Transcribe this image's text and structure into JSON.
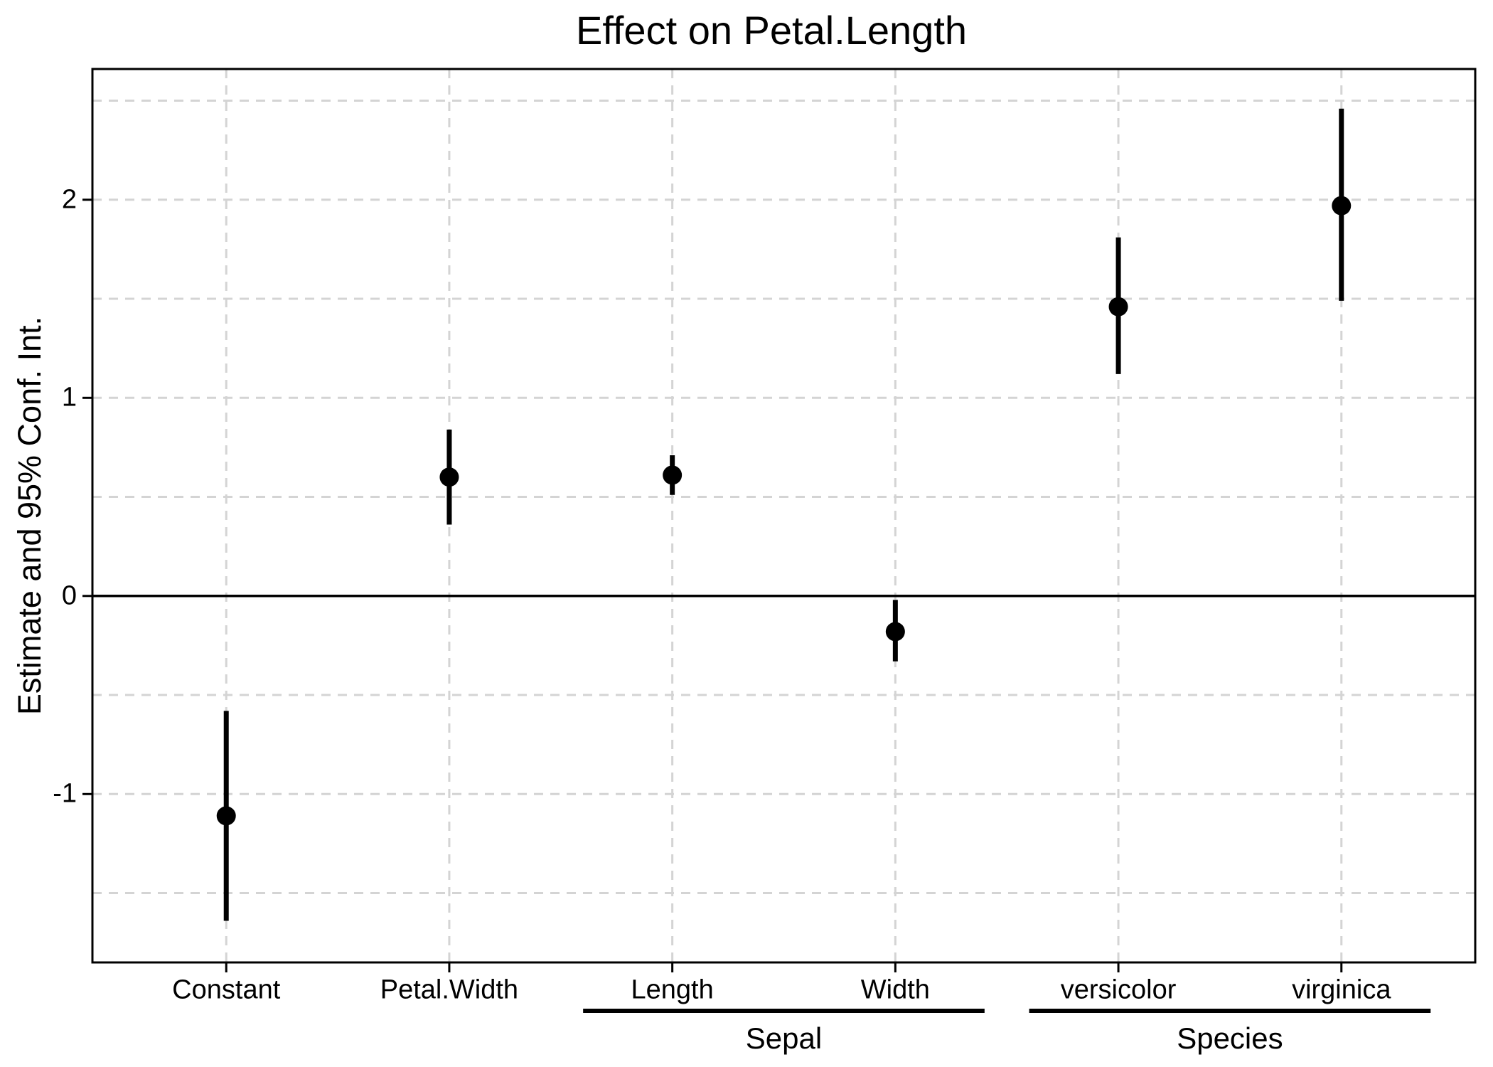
{
  "chart_data": {
    "type": "scatter",
    "variant": "coefficient-plot-with-ci",
    "title": "Effect on Petal.Length",
    "xlabel": "",
    "ylabel": "Estimate and 95% Conf. Int.",
    "categories": [
      "Constant",
      "Petal.Width",
      "Length",
      "Width",
      "versicolor",
      "virginica"
    ],
    "groups": [
      {
        "label": "Sepal",
        "from": 2,
        "to": 3
      },
      {
        "label": "Species",
        "from": 4,
        "to": 5
      }
    ],
    "series": [
      {
        "name": "Estimate and 95% Conf. Int.",
        "points": [
          {
            "term": "Constant",
            "estimate": -1.11,
            "ci_low": -1.64,
            "ci_high": -0.58
          },
          {
            "term": "Petal.Width",
            "estimate": 0.6,
            "ci_low": 0.36,
            "ci_high": 0.84
          },
          {
            "term": "Sepal Length",
            "estimate": 0.61,
            "ci_low": 0.51,
            "ci_high": 0.71
          },
          {
            "term": "Sepal Width",
            "estimate": -0.18,
            "ci_low": -0.33,
            "ci_high": -0.02
          },
          {
            "term": "Species versicolor",
            "estimate": 1.46,
            "ci_low": 1.12,
            "ci_high": 1.81
          },
          {
            "term": "Species virginica",
            "estimate": 1.97,
            "ci_low": 1.49,
            "ci_high": 2.46
          }
        ]
      }
    ],
    "y_axis": {
      "ticks": [
        {
          "label": "2",
          "value": 2
        },
        {
          "label": "1",
          "value": 1
        },
        {
          "label": "0",
          "value": 0
        },
        {
          "label": "-1",
          "value": -1
        }
      ],
      "gridlines": [
        2.5,
        2,
        1.5,
        1,
        0.5,
        -0.5,
        -1,
        -1.5
      ],
      "range": [
        -1.85,
        2.66
      ],
      "zero_line": 0
    },
    "layout_hints": {
      "grid": "dashed",
      "legend": "none",
      "panel_border": true
    },
    "style": {
      "point_color": "#000000",
      "ci_color": "#000000",
      "gridline_color": "#d4d4d4",
      "zero_line_color": "#000000",
      "panel_border_color": "#000000",
      "text_color": "#000000",
      "background": "#ffffff"
    }
  }
}
